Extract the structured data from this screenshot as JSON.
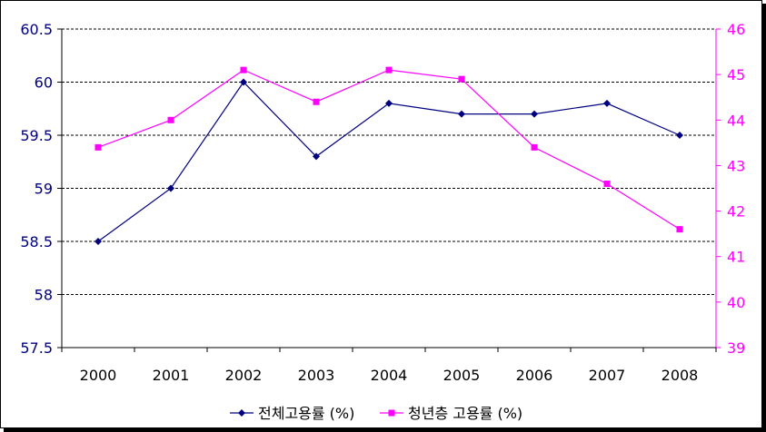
{
  "chart_data": {
    "type": "line",
    "categories": [
      "2000",
      "2001",
      "2002",
      "2003",
      "2004",
      "2005",
      "2006",
      "2007",
      "2008"
    ],
    "series": [
      {
        "name": "전체고용률 (%)",
        "axis": "left",
        "color": "#000080",
        "marker": "diamond",
        "values": [
          58.5,
          59.0,
          60.0,
          59.3,
          59.8,
          59.7,
          59.7,
          59.8,
          59.5
        ]
      },
      {
        "name": "청년층 고용률 (%)",
        "axis": "right",
        "color": "#ff00ff",
        "marker": "square",
        "values": [
          43.4,
          44.0,
          45.1,
          44.4,
          45.1,
          44.9,
          43.4,
          42.6,
          41.6
        ]
      }
    ],
    "y_left": {
      "ylim": [
        57.5,
        60.5
      ],
      "ticks": [
        "57.5",
        "58",
        "58.5",
        "59",
        "59.5",
        "60",
        "60.5"
      ],
      "color": "#000080"
    },
    "y_right": {
      "ylim": [
        39,
        46
      ],
      "ticks": [
        "39",
        "40",
        "41",
        "42",
        "43",
        "44",
        "45",
        "46"
      ],
      "color": "#ff00ff"
    },
    "grid": true,
    "legend": "bottom"
  }
}
